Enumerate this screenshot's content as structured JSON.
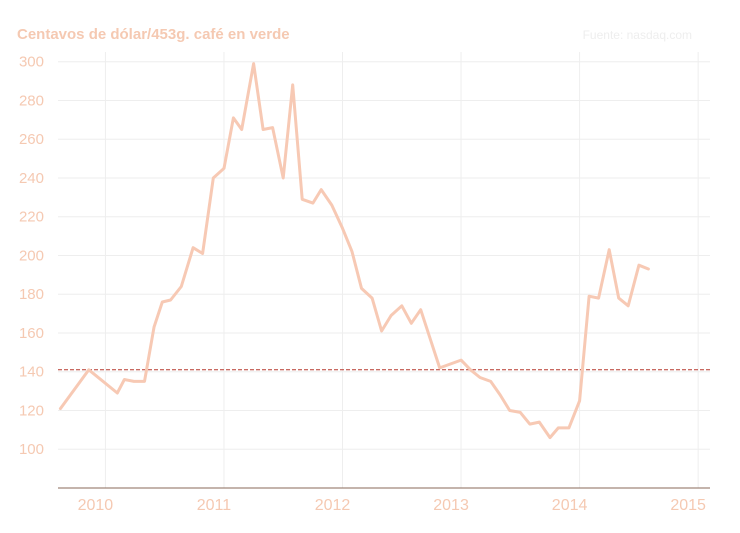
{
  "colors": {
    "text": "#f5c9b2",
    "line": "#f7c9b4",
    "grid": "#eeeeee",
    "axis": "#8a6a5a",
    "reference": "#b5382e"
  },
  "chart_data": {
    "type": "line",
    "title": "",
    "ylabel": "Centavos de dólar/453g. café en verde",
    "source": "Fuente: nasdaq.com",
    "xlabel": "",
    "xlim": [
      2009.6,
      2015.1
    ],
    "ylim": [
      80,
      305
    ],
    "yticks": [
      100,
      120,
      140,
      160,
      180,
      200,
      220,
      240,
      260,
      280,
      300
    ],
    "xticks": [
      2010,
      2011,
      2012,
      2013,
      2014,
      2015
    ],
    "grid": true,
    "reference_line": 141,
    "series": [
      {
        "points": [
          [
            2009.62,
            121
          ],
          [
            2009.86,
            141
          ],
          [
            2010.1,
            129
          ],
          [
            2010.16,
            136
          ],
          [
            2010.24,
            135
          ],
          [
            2010.33,
            135
          ],
          [
            2010.41,
            163
          ],
          [
            2010.48,
            176
          ],
          [
            2010.55,
            177
          ],
          [
            2010.64,
            184
          ],
          [
            2010.74,
            204
          ],
          [
            2010.82,
            201
          ],
          [
            2010.91,
            240
          ],
          [
            2011.0,
            245
          ],
          [
            2011.08,
            271
          ],
          [
            2011.15,
            265
          ],
          [
            2011.25,
            299
          ],
          [
            2011.33,
            265
          ],
          [
            2011.41,
            266
          ],
          [
            2011.5,
            240
          ],
          [
            2011.58,
            288
          ],
          [
            2011.66,
            229
          ],
          [
            2011.75,
            227
          ],
          [
            2011.82,
            234
          ],
          [
            2011.91,
            226
          ],
          [
            2012.0,
            214
          ],
          [
            2012.08,
            202
          ],
          [
            2012.16,
            183
          ],
          [
            2012.25,
            178
          ],
          [
            2012.33,
            161
          ],
          [
            2012.41,
            169
          ],
          [
            2012.5,
            174
          ],
          [
            2012.58,
            165
          ],
          [
            2012.66,
            172
          ],
          [
            2012.74,
            157
          ],
          [
            2012.82,
            142
          ],
          [
            2012.91,
            144
          ],
          [
            2013.0,
            146
          ],
          [
            2013.08,
            141
          ],
          [
            2013.16,
            137
          ],
          [
            2013.25,
            135
          ],
          [
            2013.33,
            128
          ],
          [
            2013.41,
            120
          ],
          [
            2013.5,
            119
          ],
          [
            2013.58,
            113
          ],
          [
            2013.66,
            114
          ],
          [
            2013.75,
            106
          ],
          [
            2013.82,
            111
          ],
          [
            2013.91,
            111
          ],
          [
            2014.0,
            125
          ],
          [
            2014.08,
            179
          ],
          [
            2014.16,
            178
          ],
          [
            2014.25,
            203
          ],
          [
            2014.33,
            178
          ],
          [
            2014.41,
            174
          ],
          [
            2014.5,
            195
          ],
          [
            2014.58,
            193
          ]
        ]
      }
    ]
  }
}
